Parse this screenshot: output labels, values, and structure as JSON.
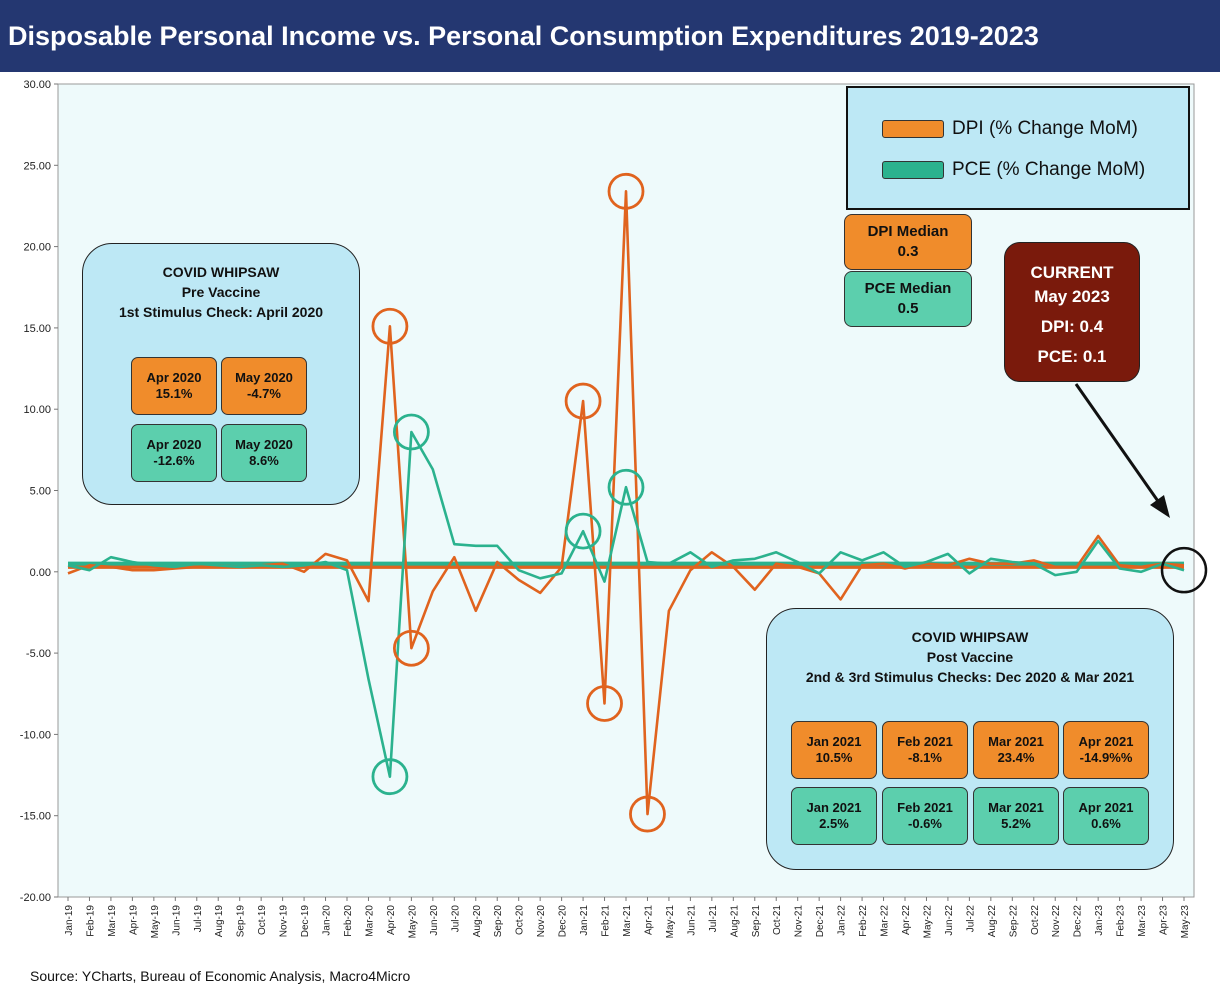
{
  "header": {
    "title": "Disposable Personal Income vs. Personal Consumption Expenditures 2019-2023"
  },
  "colors": {
    "dpi": "#e0631e",
    "pce": "#2bb28e",
    "plot_bg": "#eefafb",
    "title_bg": "#243771"
  },
  "legend": {
    "dpi_label": "DPI (% Change MoM)",
    "pce_label": "PCE (% Change MoM)"
  },
  "medians": {
    "dpi_title": "DPI Median",
    "dpi_value": "0.3",
    "pce_title": "PCE Median",
    "pce_value": "0.5"
  },
  "current": {
    "title1": "CURRENT",
    "title2": "May 2023",
    "dpi": "DPI: 0.4",
    "pce": "PCE: 0.1"
  },
  "pre_vaccine": {
    "line1": "COVID WHIPSAW",
    "line2": "Pre Vaccine",
    "line3": "1st Stimulus Check: April 2020",
    "cells": [
      {
        "month": "Apr 2020",
        "value": "15.1%",
        "kind": "dpi"
      },
      {
        "month": "May 2020",
        "value": "-4.7%",
        "kind": "dpi"
      },
      {
        "month": "Apr 2020",
        "value": "-12.6%",
        "kind": "pce"
      },
      {
        "month": "May 2020",
        "value": "8.6%",
        "kind": "pce"
      }
    ]
  },
  "post_vaccine": {
    "line1": "COVID WHIPSAW",
    "line2": "Post Vaccine",
    "line3": "2nd & 3rd Stimulus Checks: Dec 2020 & Mar 2021",
    "cells": [
      {
        "month": "Jan 2021",
        "value": "10.5%",
        "kind": "dpi"
      },
      {
        "month": "Feb 2021",
        "value": "-8.1%",
        "kind": "dpi"
      },
      {
        "month": "Mar 2021",
        "value": "23.4%",
        "kind": "dpi"
      },
      {
        "month": "Apr 2021",
        "value": "-14.9%%",
        "kind": "dpi"
      },
      {
        "month": "Jan 2021",
        "value": "2.5%",
        "kind": "pce"
      },
      {
        "month": "Feb 2021",
        "value": "-0.6%",
        "kind": "pce"
      },
      {
        "month": "Mar 2021",
        "value": "5.2%",
        "kind": "pce"
      },
      {
        "month": "Apr 2021",
        "value": "0.6%",
        "kind": "pce"
      }
    ]
  },
  "source": "Source: YCharts, Bureau of Economic Analysis, Macro4Micro",
  "chart_data": {
    "type": "line",
    "title": "Disposable Personal Income vs. Personal Consumption Expenditures 2019-2023",
    "xlabel": "",
    "ylabel": "",
    "ylim": [
      -20,
      30
    ],
    "yticks": [
      "30.00",
      "25.00",
      "20.00",
      "15.00",
      "10.00",
      "5.00",
      "0.00",
      "-5.00",
      "-10.00",
      "-15.00",
      "-20.00"
    ],
    "categories": [
      "Jan-19",
      "Feb-19",
      "Mar-19",
      "Apr-19",
      "May-19",
      "Jun-19",
      "Jul-19",
      "Aug-19",
      "Sep-19",
      "Oct-19",
      "Nov-19",
      "Dec-19",
      "Jan-20",
      "Feb-20",
      "Mar-20",
      "Apr-20",
      "May-20",
      "Jun-20",
      "Jul-20",
      "Aug-20",
      "Sep-20",
      "Oct-20",
      "Nov-20",
      "Dec-20",
      "Jan-21",
      "Feb-21",
      "Mar-21",
      "Apr-21",
      "May-21",
      "Jun-21",
      "Jul-21",
      "Aug-21",
      "Sep-21",
      "Oct-21",
      "Nov-21",
      "Dec-21",
      "Jan-22",
      "Feb-22",
      "Mar-22",
      "Apr-22",
      "May-22",
      "Jun-22",
      "Jul-22",
      "Aug-22",
      "Sep-22",
      "Oct-22",
      "Nov-22",
      "Dec-22",
      "Jan-23",
      "Feb-23",
      "Mar-23",
      "Apr-23",
      "May-23"
    ],
    "series": [
      {
        "name": "DPI (% Change MoM)",
        "values": [
          -0.1,
          0.4,
          0.3,
          0.1,
          0.1,
          0.2,
          0.3,
          0.4,
          0.3,
          0.4,
          0.5,
          0.0,
          1.1,
          0.7,
          -1.8,
          15.1,
          -4.7,
          -1.2,
          0.9,
          -2.4,
          0.6,
          -0.5,
          -1.3,
          0.3,
          10.5,
          -8.1,
          23.4,
          -14.9,
          -2.4,
          0.1,
          1.2,
          0.3,
          -1.1,
          0.5,
          0.3,
          -0.1,
          -1.7,
          0.4,
          0.5,
          0.2,
          0.5,
          0.4,
          0.8,
          0.5,
          0.5,
          0.7,
          0.3,
          0.3,
          2.2,
          0.4,
          0.3,
          0.5,
          0.4
        ]
      },
      {
        "name": "PCE (% Change MoM)",
        "values": [
          0.4,
          0.1,
          0.9,
          0.6,
          0.4,
          0.3,
          0.5,
          0.4,
          0.3,
          0.4,
          0.3,
          0.4,
          0.6,
          0.1,
          -6.6,
          -12.6,
          8.6,
          6.3,
          1.7,
          1.6,
          1.6,
          0.1,
          -0.4,
          -0.1,
          2.5,
          -0.6,
          5.2,
          0.6,
          0.5,
          1.2,
          0.3,
          0.7,
          0.8,
          1.2,
          0.6,
          -0.1,
          1.2,
          0.7,
          1.2,
          0.3,
          0.6,
          1.1,
          -0.1,
          0.8,
          0.6,
          0.5,
          -0.2,
          0.0,
          1.9,
          0.2,
          0.0,
          0.5,
          0.1
        ]
      }
    ],
    "median_lines": [
      {
        "name": "DPI Median",
        "value": 0.3
      },
      {
        "name": "PCE Median",
        "value": 0.5
      }
    ],
    "highlighted_points": [
      {
        "series": "DPI (% Change MoM)",
        "category": "Apr-20"
      },
      {
        "series": "DPI (% Change MoM)",
        "category": "May-20"
      },
      {
        "series": "PCE (% Change MoM)",
        "category": "Apr-20"
      },
      {
        "series": "PCE (% Change MoM)",
        "category": "May-20"
      },
      {
        "series": "DPI (% Change MoM)",
        "category": "Jan-21"
      },
      {
        "series": "DPI (% Change MoM)",
        "category": "Feb-21"
      },
      {
        "series": "DPI (% Change MoM)",
        "category": "Mar-21"
      },
      {
        "series": "DPI (% Change MoM)",
        "category": "Apr-21"
      },
      {
        "series": "PCE (% Change MoM)",
        "category": "Jan-21"
      },
      {
        "series": "PCE (% Change MoM)",
        "category": "Mar-21"
      },
      {
        "series": "PCE (% Change MoM)",
        "category": "May-23"
      }
    ]
  }
}
